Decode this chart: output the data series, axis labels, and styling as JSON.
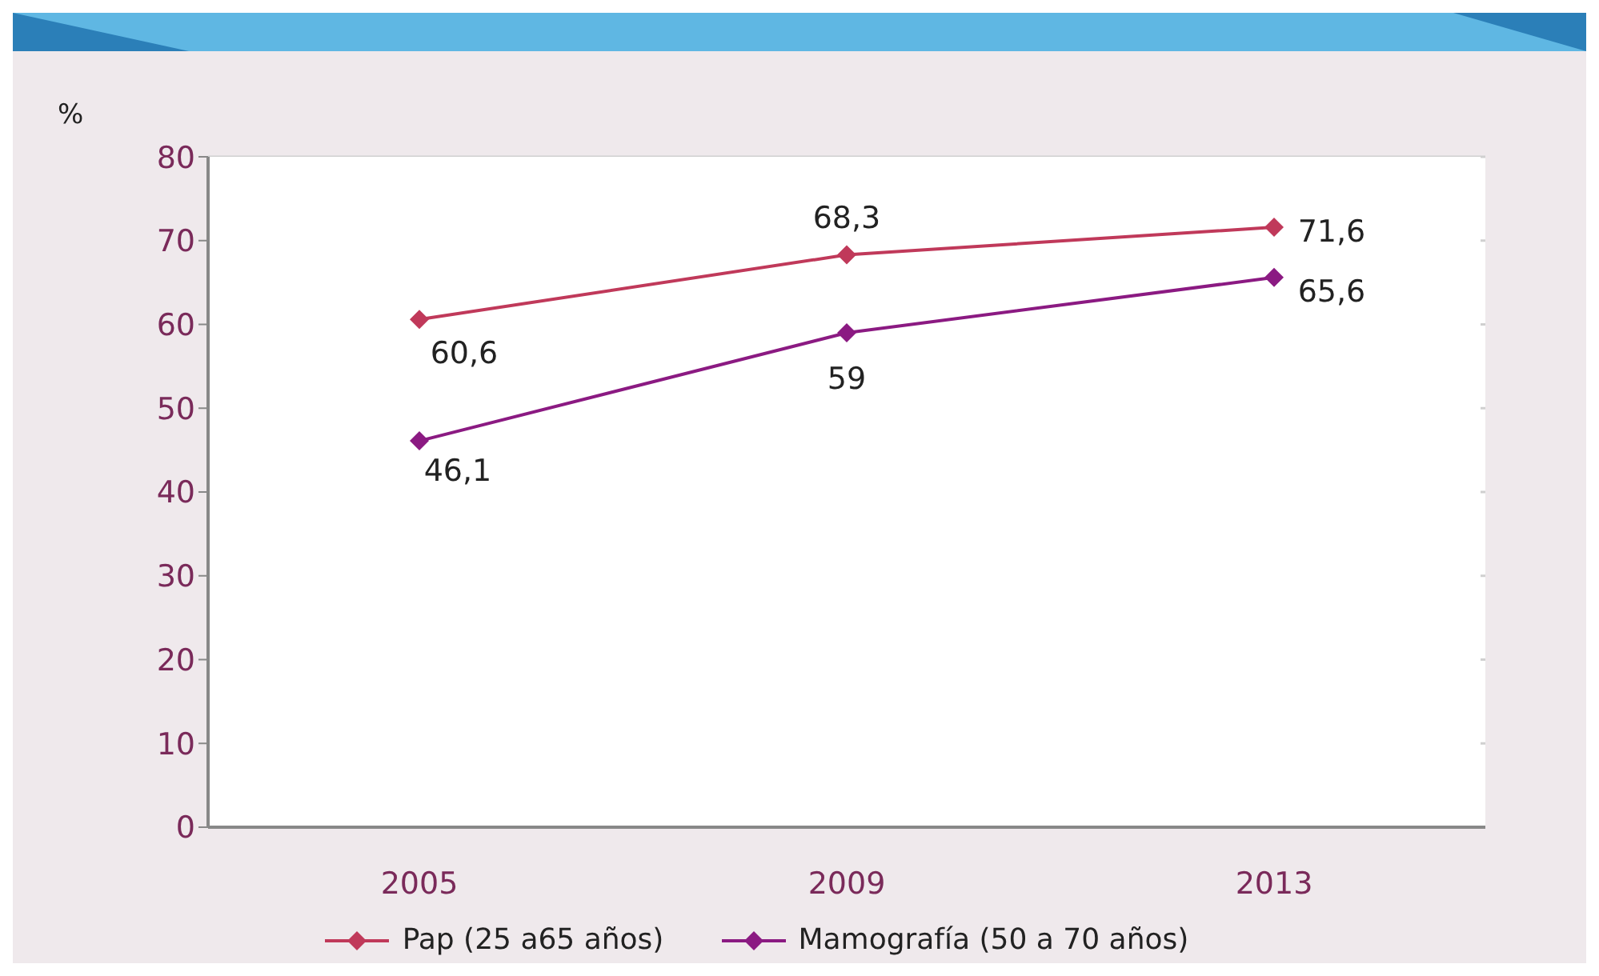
{
  "chart_data": {
    "type": "line",
    "ylabel": "%",
    "categories": [
      "2005",
      "2009",
      "2013"
    ],
    "series": [
      {
        "name": "Pap (25 a65 años)",
        "color": "#c0395a",
        "values": [
          60.6,
          68.3,
          71.6
        ],
        "value_labels": [
          "60,6",
          "68,3",
          "71,6"
        ]
      },
      {
        "name": "Mamografía (50 a 70 años)",
        "color": "#8b1a82",
        "values": [
          46.1,
          59,
          65.6
        ],
        "value_labels": [
          "46,1",
          "59",
          "65,6"
        ]
      }
    ],
    "ylim": [
      0,
      80
    ],
    "yticks": [
      0,
      10,
      20,
      30,
      40,
      50,
      60,
      70,
      80
    ],
    "grid": "y",
    "legend": "bottom",
    "marker": "diamond",
    "line_style": "solid"
  }
}
